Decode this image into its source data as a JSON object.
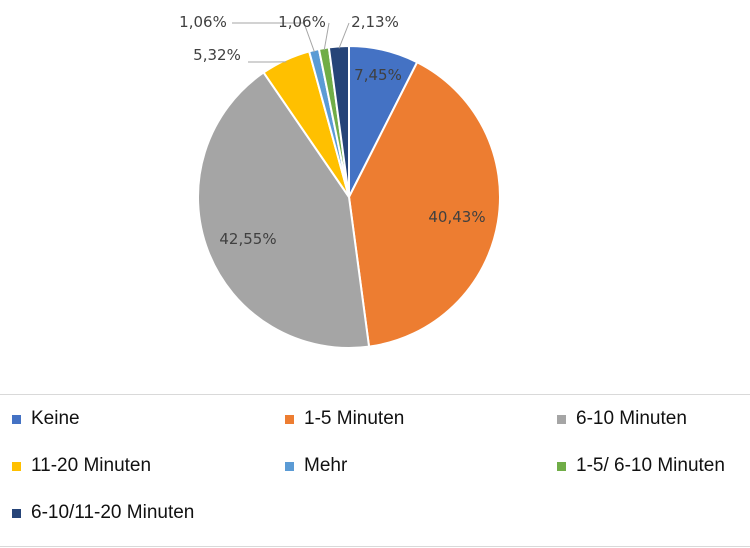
{
  "chart_data": {
    "type": "pie",
    "title": "",
    "categories": [
      "Keine",
      "1-5 Minuten",
      "6-10 Minuten",
      "11-20 Minuten",
      "Mehr",
      "1-5/ 6-10 Minuten",
      "6-10/11-20 Minuten"
    ],
    "values": [
      7.45,
      40.43,
      42.55,
      5.32,
      1.06,
      1.06,
      2.13
    ],
    "value_labels": [
      "7,45%",
      "40,43%",
      "42,55%",
      "5,32%",
      "1,06%",
      "1,06%",
      "2,13%"
    ],
    "colors": [
      "#4472c4",
      "#ed7d31",
      "#a5a5a5",
      "#ffc000",
      "#5b9bd5",
      "#70ad47",
      "#264478"
    ],
    "legend_position": "bottom"
  },
  "legend": {
    "items": [
      {
        "label": "Keine"
      },
      {
        "label": "1-5 Minuten"
      },
      {
        "label": "6-10 Minuten"
      },
      {
        "label": "11-20 Minuten"
      },
      {
        "label": "Mehr"
      },
      {
        "label": "1-5/ 6-10 Minuten"
      },
      {
        "label": "6-10/11-20 Minuten"
      }
    ]
  }
}
